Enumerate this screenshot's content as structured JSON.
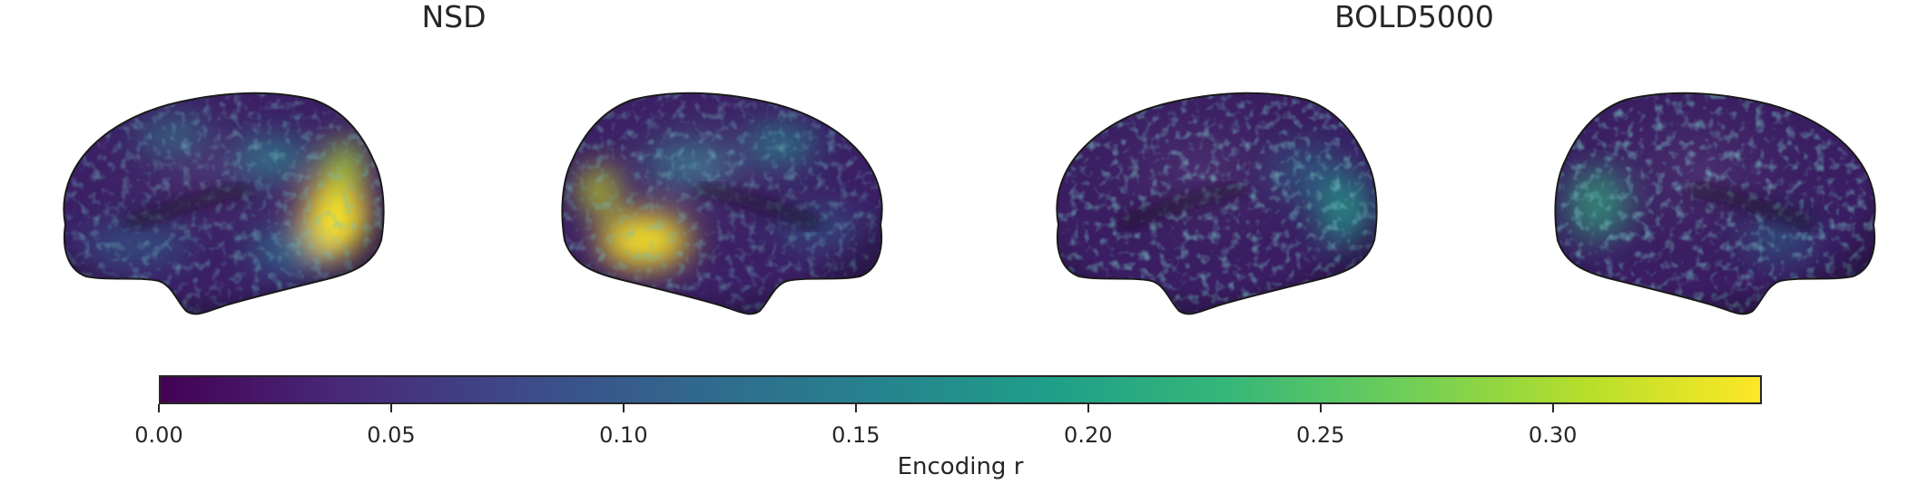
{
  "panels": [
    {
      "title": "NSD"
    },
    {
      "title": "BOLD5000"
    }
  ],
  "colorbar": {
    "label": "Encoding r",
    "min": 0.0,
    "max": 0.345,
    "ticks": [
      "0.00",
      "0.05",
      "0.10",
      "0.15",
      "0.20",
      "0.25",
      "0.30"
    ],
    "colormap": "viridis",
    "colors": [
      "#440154",
      "#482878",
      "#3e4989",
      "#31688e",
      "#26828e",
      "#1f9e89",
      "#35b779",
      "#6ece58",
      "#b5de2b",
      "#fde725"
    ]
  },
  "hemispheres": [
    {
      "dataset": "NSD",
      "view": "left-lateral",
      "peak_region": "occipito-temporal",
      "peak_r": 0.34
    },
    {
      "dataset": "NSD",
      "view": "right-lateral",
      "peak_region": "occipito-temporal",
      "peak_r": 0.34
    },
    {
      "dataset": "BOLD5000",
      "view": "left-lateral",
      "peak_region": "occipital",
      "peak_r": 0.18
    },
    {
      "dataset": "BOLD5000",
      "view": "right-lateral",
      "peak_region": "occipital",
      "peak_r": 0.2
    }
  ]
}
